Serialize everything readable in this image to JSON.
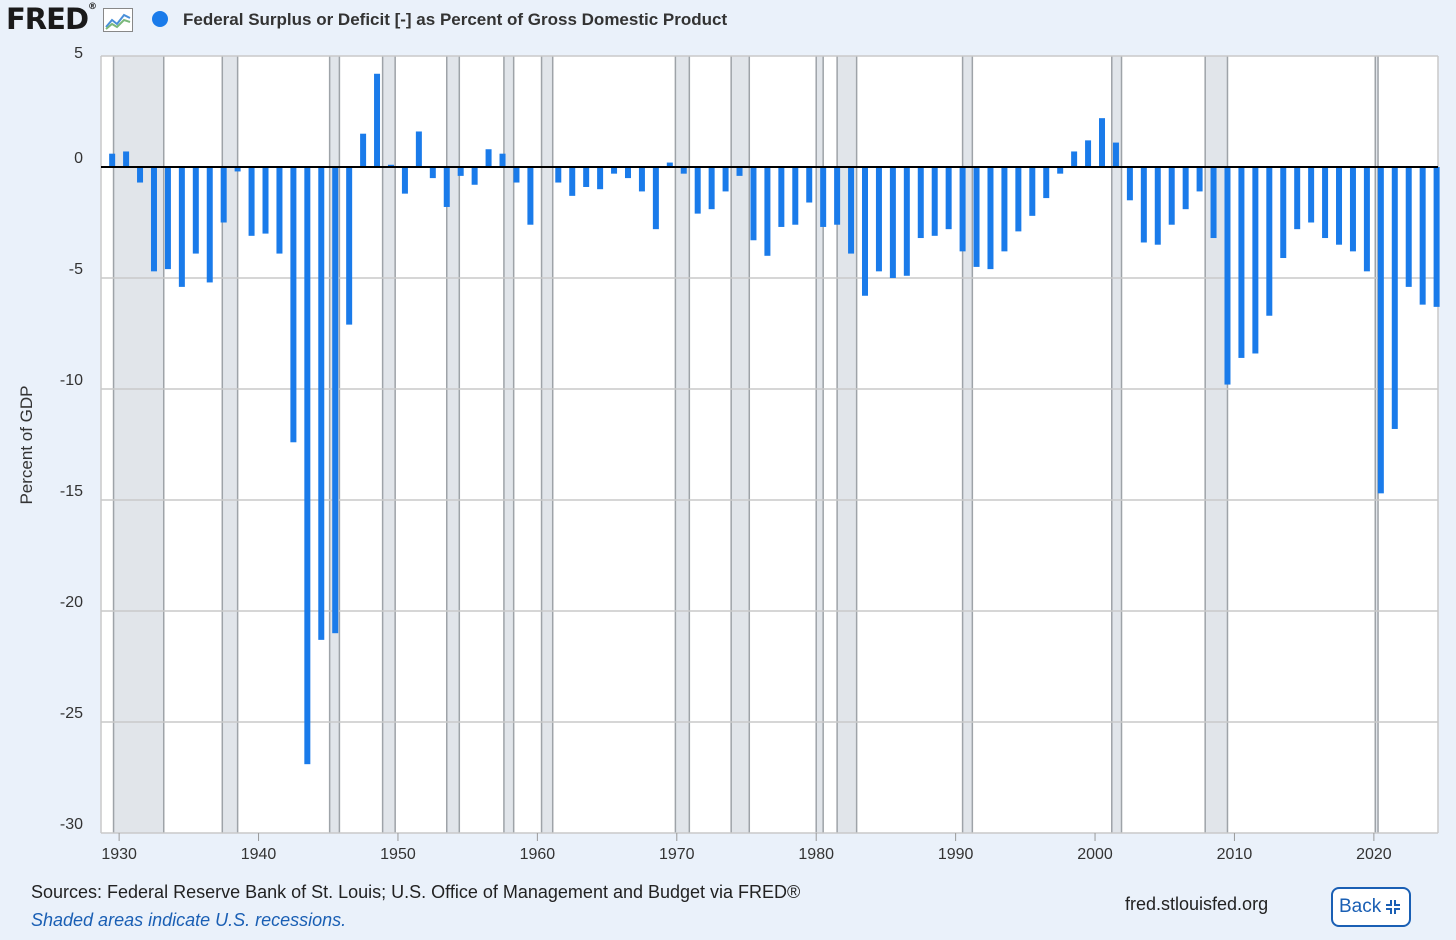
{
  "header": {
    "logo_text": "FRED",
    "logo_mark": "®",
    "series_title": "Federal Surplus or Deficit [-] as Percent of Gross Domestic Product"
  },
  "footer": {
    "sources": "Sources: Federal Reserve Bank of St. Louis; U.S. Office of Management and Budget via FRED®",
    "note": "Shaded areas indicate U.S. recessions.",
    "url": "fred.stlouisfed.org",
    "back_label": "Back"
  },
  "colors": {
    "bar": "#1a7bea",
    "recession": "#e1e5ea",
    "recession_border": "#9ea3a8",
    "grid": "#c9c9c9",
    "zero_line": "#000000",
    "plot_bg": "#ffffff",
    "tick_text": "#333333"
  },
  "chart_data": {
    "type": "bar",
    "title": "Federal Surplus or Deficit [-] as Percent of Gross Domestic Product",
    "xlabel": "",
    "ylabel": "Percent of GDP",
    "ylim": [
      -30,
      5
    ],
    "xlim": [
      1928.7,
      2024.6
    ],
    "yticks": [
      5,
      0,
      -5,
      -10,
      -15,
      -20,
      -25,
      -30
    ],
    "xticks": [
      1930,
      1940,
      1950,
      1960,
      1970,
      1980,
      1990,
      2000,
      2010,
      2020
    ],
    "grid": true,
    "legend": "top-left",
    "x": [
      1929,
      1930,
      1931,
      1932,
      1933,
      1934,
      1935,
      1936,
      1937,
      1938,
      1939,
      1940,
      1941,
      1942,
      1943,
      1944,
      1945,
      1946,
      1947,
      1948,
      1949,
      1950,
      1951,
      1952,
      1953,
      1954,
      1955,
      1956,
      1957,
      1958,
      1959,
      1960,
      1961,
      1962,
      1963,
      1964,
      1965,
      1966,
      1967,
      1968,
      1969,
      1970,
      1971,
      1972,
      1973,
      1974,
      1975,
      1976,
      1977,
      1978,
      1979,
      1980,
      1981,
      1982,
      1983,
      1984,
      1985,
      1986,
      1987,
      1988,
      1989,
      1990,
      1991,
      1992,
      1993,
      1994,
      1995,
      1996,
      1997,
      1998,
      1999,
      2000,
      2001,
      2002,
      2003,
      2004,
      2005,
      2006,
      2007,
      2008,
      2009,
      2010,
      2011,
      2012,
      2013,
      2014,
      2015,
      2016,
      2017,
      2018,
      2019,
      2020,
      2021,
      2022,
      2023,
      2024
    ],
    "values": [
      0.6,
      0.7,
      -0.7,
      -4.7,
      -4.6,
      -5.4,
      -3.9,
      -5.2,
      -2.5,
      -0.2,
      -3.1,
      -3.0,
      -3.9,
      -12.4,
      -26.9,
      -21.3,
      -21.0,
      -7.1,
      1.5,
      4.2,
      0.1,
      -1.2,
      1.6,
      -0.5,
      -1.8,
      -0.4,
      -0.8,
      0.8,
      0.6,
      -0.7,
      -2.6,
      0.0,
      -0.7,
      -1.3,
      -0.9,
      -1.0,
      -0.3,
      -0.5,
      -1.1,
      -2.8,
      0.2,
      -0.3,
      -2.1,
      -1.9,
      -1.1,
      -0.4,
      -3.3,
      -4.0,
      -2.7,
      -2.6,
      -1.6,
      -2.7,
      -2.6,
      -3.9,
      -5.8,
      -4.7,
      -5.0,
      -4.9,
      -3.2,
      -3.1,
      -2.8,
      -3.8,
      -4.5,
      -4.6,
      -3.8,
      -2.9,
      -2.2,
      -1.4,
      -0.3,
      0.7,
      1.2,
      2.2,
      1.1,
      -1.5,
      -3.4,
      -3.5,
      -2.6,
      -1.9,
      -1.1,
      -3.2,
      -9.8,
      -8.6,
      -8.4,
      -6.7,
      -4.1,
      -2.8,
      -2.5,
      -3.2,
      -3.5,
      -3.8,
      -4.7,
      -14.7,
      -11.8,
      -5.4,
      -6.2,
      -6.3
    ],
    "recessions": [
      [
        "1929-08",
        1929.6,
        1933.2
      ],
      [
        "1937-05",
        1937.4,
        1938.5
      ],
      [
        "1945-02",
        1945.1,
        1945.8
      ],
      [
        "1948-11",
        1948.9,
        1949.8
      ],
      [
        "1953-07",
        1953.5,
        1954.4
      ],
      [
        "1957-08",
        1957.6,
        1958.3
      ],
      [
        "1960-04",
        1960.3,
        1961.1
      ],
      [
        "1969-12",
        1969.9,
        1970.9
      ],
      [
        "1973-11",
        1973.9,
        1975.2
      ],
      [
        "1980-01",
        1980.0,
        1980.5
      ],
      [
        "1981-07",
        1981.5,
        1982.9
      ],
      [
        "1990-07",
        1990.5,
        1991.2
      ],
      [
        "2001-03",
        2001.2,
        2001.9
      ],
      [
        "2007-12",
        2007.9,
        2009.5
      ],
      [
        "2020-02",
        2020.1,
        2020.3
      ]
    ]
  }
}
